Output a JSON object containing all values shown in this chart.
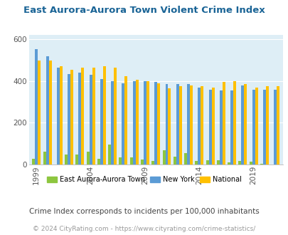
{
  "title": "East Aurora-Aurora Town Violent Crime Index",
  "years": [
    1999,
    2000,
    2001,
    2002,
    2003,
    2004,
    2005,
    2006,
    2007,
    2008,
    2009,
    2010,
    2011,
    2012,
    2013,
    2014,
    2015,
    2016,
    2017,
    2018,
    2019,
    2020,
    2021
  ],
  "east_aurora": [
    28,
    60,
    0,
    48,
    47,
    62,
    27,
    95,
    33,
    33,
    25,
    18,
    70,
    38,
    55,
    18,
    20,
    20,
    10,
    18,
    12,
    5,
    0
  ],
  "new_york": [
    555,
    520,
    465,
    435,
    440,
    430,
    410,
    400,
    390,
    400,
    400,
    395,
    385,
    385,
    385,
    370,
    360,
    355,
    355,
    380,
    360,
    360,
    360
  ],
  "national": [
    500,
    500,
    470,
    455,
    465,
    465,
    470,
    465,
    425,
    405,
    400,
    390,
    365,
    375,
    380,
    375,
    370,
    395,
    400,
    385,
    370,
    375,
    375
  ],
  "color_east_aurora": "#8dc63f",
  "color_new_york": "#5b9bd5",
  "color_national": "#ffc000",
  "plot_bg": "#deeef6",
  "ylim": [
    0,
    620
  ],
  "yticks": [
    0,
    200,
    400,
    600
  ],
  "label_years": [
    1999,
    2004,
    2009,
    2014,
    2019
  ],
  "legend_labels": [
    "East Aurora-Aurora Town",
    "New York",
    "National"
  ],
  "footnote1": "Crime Index corresponds to incidents per 100,000 inhabitants",
  "footnote2": "© 2024 CityRating.com - https://www.cityrating.com/crime-statistics/",
  "title_color": "#1a6496",
  "footnote1_color": "#444444",
  "footnote2_color": "#999999",
  "title_fontsize": 9.5
}
